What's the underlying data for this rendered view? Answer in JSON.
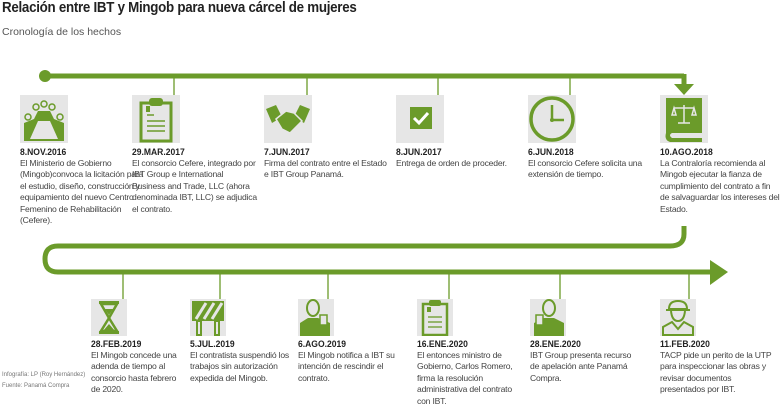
{
  "header": {
    "title": "Relación entre IBT y Mingob para nueva cárcel de mujeres",
    "subtitle": "Cronología de los hechos"
  },
  "colors": {
    "accent": "#6b9b2a",
    "icon_bg": "#e6e6e6",
    "text": "#444444"
  },
  "timeline": {
    "row1": [
      {
        "date": "8.NOV.2016",
        "icon": "conference-table-icon",
        "text": "El Ministerio de Gobierno (Mingob)convoca la licitación para el estudio, diseño, construcción y equipamiento del nuevo Centro Femenino de Rehabilitación (Cefere)."
      },
      {
        "date": "29.MAR.2017",
        "icon": "clipboard-icon",
        "text": "El consorcio Cefere, integrado por IBT Group e International Business and Trade, LLC (ahora denominada IBT, LLC) se adjudica el contrato."
      },
      {
        "date": "7.JUN.2017",
        "icon": "handshake-icon",
        "text": "Firma del contrato entre el Estado e IBT Group Panamá."
      },
      {
        "date": "8.JUN.2017",
        "icon": "checkmark-icon",
        "text": "Entrega de orden de proceder."
      },
      {
        "date": "6.JUN.2018",
        "icon": "clock-icon",
        "text": "El consorcio Cefere solicita una extensión de tiempo."
      },
      {
        "date": "10.AGO.2018",
        "icon": "law-book-icon",
        "text": "La Contraloría recomienda al Mingob ejecutar la fianza de cumplimiento del contrato a fin de salvaguardar los intereses del Estado."
      }
    ],
    "row2": [
      {
        "date": "28.FEB.2019",
        "icon": "hourglass-icon",
        "text": "El Mingob concede una adenda de tiempo al consorcio hasta febrero de 2020."
      },
      {
        "date": "5.JUL.2019",
        "icon": "barrier-icon",
        "text": "El contratista suspendió los trabajos sin autorización expedida del Mingob."
      },
      {
        "date": "6.AGO.2019",
        "icon": "official-icon",
        "text": "El Mingob notifica a IBT su intención de rescindir el contrato."
      },
      {
        "date": "16.ENE.2020",
        "icon": "clipboard-icon",
        "text": "El entonces ministro de Gobierno, Carlos Romero, firma la resolución administrativa del contrato con IBT."
      },
      {
        "date": "28.ENE.2020",
        "icon": "official-icon",
        "text": "IBT Group presenta recurso de apelación ante Panamá Compra."
      },
      {
        "date": "11.FEB.2020",
        "icon": "engineer-icon",
        "text": "TACP pide un perito de la UTP para inspeccionar las obras y revisar documentos presentados por IBT."
      }
    ]
  },
  "credits": {
    "infographic": "Infografía: LP (Roy Hernández)",
    "source": "Fuente: Panamá Compra"
  }
}
